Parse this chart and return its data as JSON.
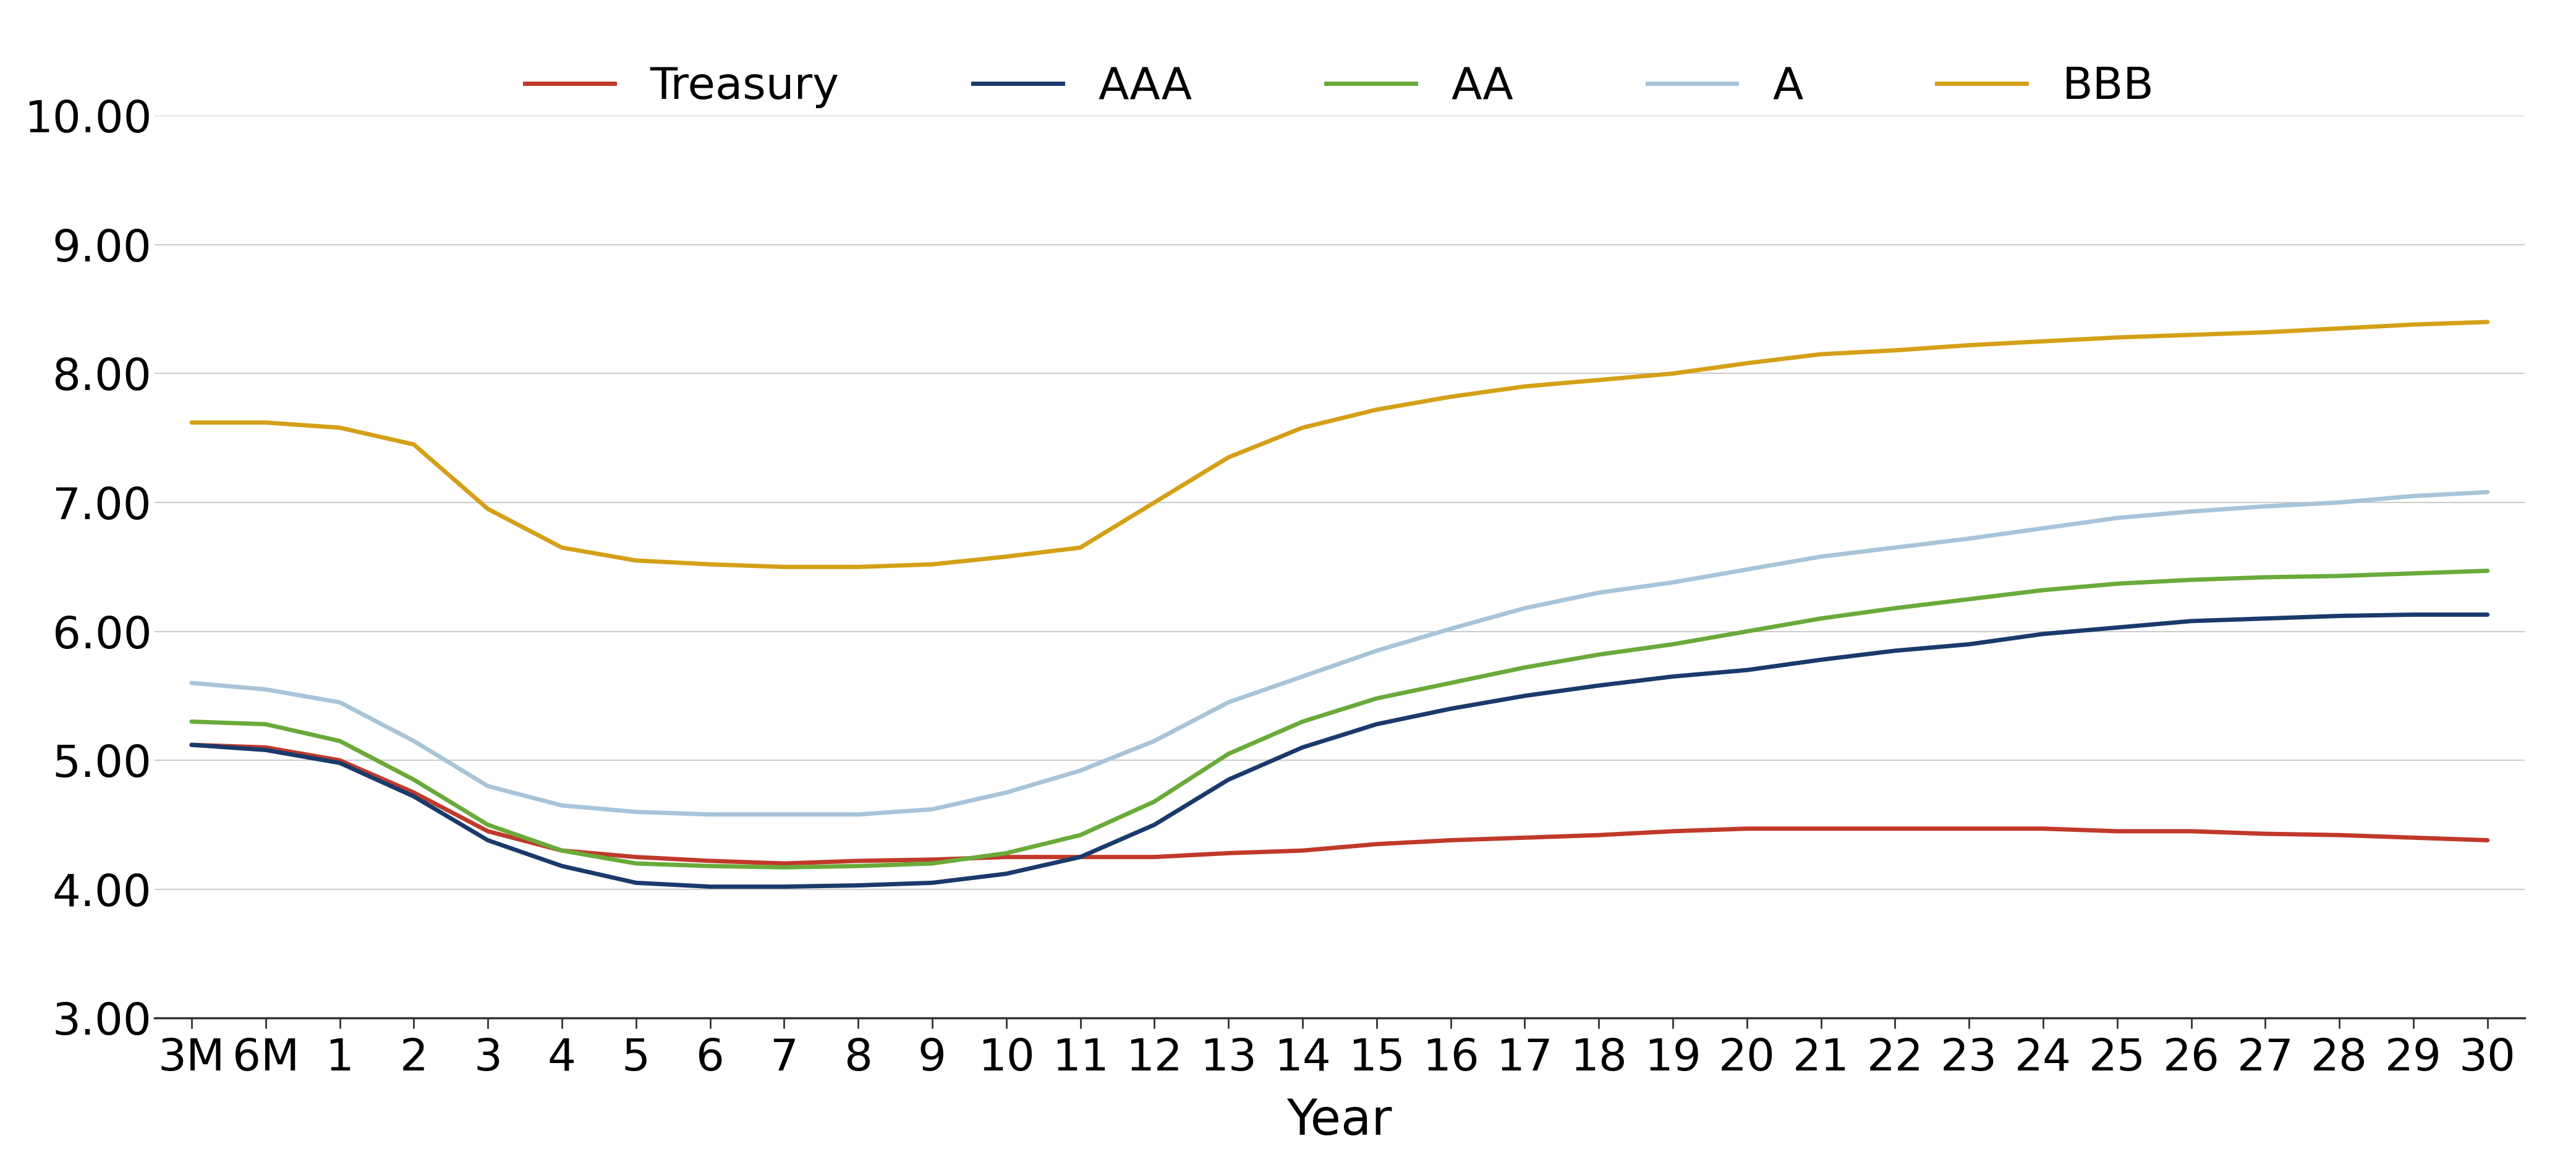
{
  "x_labels": [
    "3M",
    "6M",
    "1",
    "2",
    "3",
    "4",
    "5",
    "6",
    "7",
    "8",
    "9",
    "10",
    "11",
    "12",
    "13",
    "14",
    "15",
    "16",
    "17",
    "18",
    "19",
    "20",
    "21",
    "22",
    "23",
    "24",
    "25",
    "26",
    "27",
    "28",
    "29",
    "30"
  ],
  "x_positions": [
    0,
    1,
    2,
    3,
    4,
    5,
    6,
    7,
    8,
    9,
    10,
    11,
    12,
    13,
    14,
    15,
    16,
    17,
    18,
    19,
    20,
    21,
    22,
    23,
    24,
    25,
    26,
    27,
    28,
    29,
    30,
    31
  ],
  "series": {
    "Treasury": {
      "color": "#c0392b",
      "linewidth": 5.0,
      "values": [
        5.12,
        5.1,
        5.0,
        4.75,
        4.45,
        4.3,
        4.25,
        4.22,
        4.2,
        4.22,
        4.23,
        4.25,
        4.25,
        4.25,
        4.28,
        4.3,
        4.35,
        4.38,
        4.4,
        4.42,
        4.45,
        4.47,
        4.47,
        4.47,
        4.47,
        4.47,
        4.45,
        4.45,
        4.43,
        4.42,
        4.4,
        4.38
      ]
    },
    "AAA": {
      "color": "#1a3a6b",
      "linewidth": 5.0,
      "values": [
        5.12,
        5.08,
        4.98,
        4.72,
        4.38,
        4.18,
        4.05,
        4.02,
        4.02,
        4.03,
        4.05,
        4.12,
        4.25,
        4.5,
        4.85,
        5.1,
        5.28,
        5.4,
        5.5,
        5.58,
        5.65,
        5.7,
        5.78,
        5.85,
        5.9,
        5.98,
        6.03,
        6.08,
        6.1,
        6.12,
        6.13,
        6.13
      ]
    },
    "AA": {
      "color": "#6aaa3a",
      "linewidth": 5.0,
      "values": [
        5.3,
        5.28,
        5.15,
        4.85,
        4.5,
        4.3,
        4.2,
        4.18,
        4.17,
        4.18,
        4.2,
        4.28,
        4.42,
        4.68,
        5.05,
        5.3,
        5.48,
        5.6,
        5.72,
        5.82,
        5.9,
        6.0,
        6.1,
        6.18,
        6.25,
        6.32,
        6.37,
        6.4,
        6.42,
        6.43,
        6.45,
        6.47
      ]
    },
    "A": {
      "color": "#a8c4d8",
      "linewidth": 5.0,
      "values": [
        5.6,
        5.55,
        5.45,
        5.15,
        4.8,
        4.65,
        4.6,
        4.58,
        4.58,
        4.58,
        4.62,
        4.75,
        4.92,
        5.15,
        5.45,
        5.65,
        5.85,
        6.02,
        6.18,
        6.3,
        6.38,
        6.48,
        6.58,
        6.65,
        6.72,
        6.8,
        6.88,
        6.93,
        6.97,
        7.0,
        7.05,
        7.08
      ]
    },
    "BBB": {
      "color": "#d4a017",
      "linewidth": 5.0,
      "values": [
        7.62,
        7.62,
        7.58,
        7.45,
        6.95,
        6.65,
        6.55,
        6.52,
        6.5,
        6.5,
        6.52,
        6.58,
        6.65,
        7.0,
        7.35,
        7.58,
        7.72,
        7.82,
        7.9,
        7.95,
        8.0,
        8.08,
        8.15,
        8.18,
        8.22,
        8.25,
        8.28,
        8.3,
        8.32,
        8.35,
        8.38,
        8.4
      ]
    }
  },
  "ylim": [
    3.0,
    10.0
  ],
  "yticks": [
    3.0,
    4.0,
    5.0,
    6.0,
    7.0,
    8.0,
    9.0,
    10.0
  ],
  "xlabel": "Year",
  "background_color": "#ffffff",
  "grid_color": "#cccccc",
  "grid_linewidth": 1.5,
  "legend_labels": [
    "Treasury",
    "AAA",
    "AA",
    "A",
    "BBB"
  ],
  "legend_colors": [
    "#c0392b",
    "#1a3a6b",
    "#6aaa3a",
    "#a8c4d8",
    "#d4a017"
  ],
  "tick_fontsize": 52,
  "label_fontsize": 58,
  "legend_fontsize": 52
}
